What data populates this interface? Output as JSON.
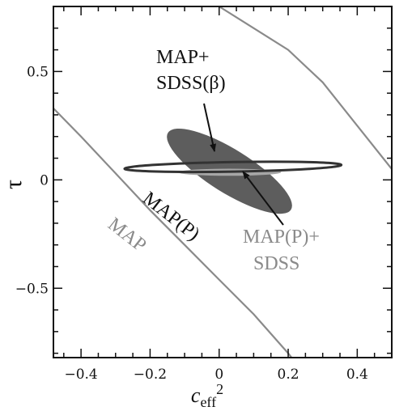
{
  "chart_data": {
    "type": "contour",
    "xlabel": "c",
    "xlabel_subscript": "eff",
    "xlabel_superscript": "2",
    "ylabel": "τ",
    "xlim": [
      -0.48,
      0.5
    ],
    "ylim": [
      -0.82,
      0.8
    ],
    "xticks": [
      -0.4,
      -0.2,
      0,
      0.2,
      0.4
    ],
    "xtick_labels": [
      "−0.4",
      "−0.2",
      "0",
      "0.2",
      "0.4"
    ],
    "yticks": [
      -0.5,
      0,
      0.5
    ],
    "ytick_labels": [
      "−0.5",
      "0",
      "0.5"
    ],
    "grid": false,
    "colors": {
      "map": "#8a8a8a",
      "map_p": "#333333",
      "map_sdss_beta_fill": "#5d5d5d",
      "map_p_sdss_fill": "#a6a6a6",
      "annotation_dark": "#111111",
      "annotation_gray": "#8a8a8a"
    },
    "contours": [
      {
        "name": "MAP",
        "style": "band",
        "lower_edge": [
          [
            -0.48,
            0.33
          ],
          [
            -0.4,
            0.2
          ],
          [
            -0.3,
            0.03
          ],
          [
            -0.2,
            -0.14
          ],
          [
            -0.1,
            -0.3
          ],
          [
            0.0,
            -0.46
          ],
          [
            0.1,
            -0.62
          ],
          [
            0.2,
            -0.8
          ],
          [
            0.21,
            -0.82
          ]
        ],
        "upper_edge": [
          [
            0.0,
            0.8
          ],
          [
            0.1,
            0.7
          ],
          [
            0.2,
            0.6
          ],
          [
            0.3,
            0.45
          ],
          [
            0.4,
            0.25
          ],
          [
            0.5,
            0.05
          ]
        ]
      },
      {
        "name": "MAP(P)",
        "style": "ellipse-outline",
        "center": [
          0.04,
          0.06
        ],
        "semi_major": 0.314,
        "semi_minor": 0.022,
        "angle_deg": 1
      },
      {
        "name": "MAP+SDSS(β)",
        "style": "ellipse-filled",
        "center": [
          0.03,
          0.04
        ],
        "semi_major": 0.21,
        "semi_minor": 0.1,
        "angle_deg": -32
      },
      {
        "name": "MAP(P)+SDSS",
        "style": "ellipse-filled",
        "center": [
          0.03,
          0.035
        ],
        "semi_major": 0.15,
        "semi_minor": 0.0165,
        "angle_deg": 0
      }
    ],
    "annotations": {
      "map_sdss_beta_line1": "MAP+",
      "map_sdss_beta_line2": "SDSS(β)",
      "map_p": "MAP(P)",
      "map": "MAP",
      "map_p_sdss_line1": "MAP(P)+",
      "map_p_sdss_line2": "SDSS"
    }
  }
}
